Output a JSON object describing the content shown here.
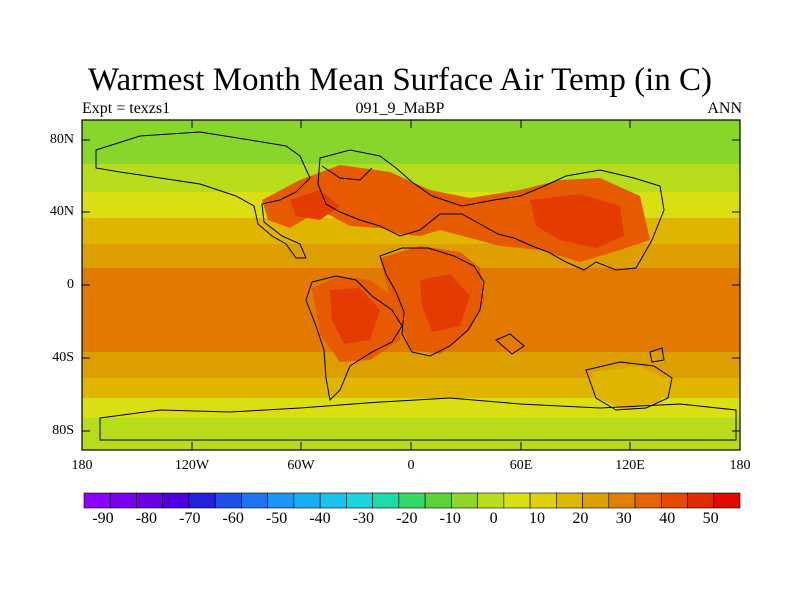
{
  "title": "Warmest Month Mean Surface Air Temp (in C)",
  "subtitle_left": "Expt = texzs1",
  "subtitle_center": "091_9_MaBP",
  "subtitle_right": "ANN",
  "lat_ticks": [
    "80N",
    "40N",
    "0",
    "40S",
    "80S"
  ],
  "lon_ticks": [
    "180",
    "120W",
    "60W",
    "0",
    "60E",
    "120E",
    "180"
  ],
  "colorbar": {
    "labels": [
      "-90",
      "-80",
      "-70",
      "-60",
      "-50",
      "-40",
      "-30",
      "-20",
      "-10",
      "0",
      "10",
      "20",
      "30",
      "40",
      "50"
    ],
    "colors": [
      "#8c00ff",
      "#7a00f0",
      "#6a00e6",
      "#4a00e0",
      "#2222dd",
      "#1f4fe8",
      "#1f73f0",
      "#1a96f5",
      "#18aef5",
      "#18c4ee",
      "#1bd4dc",
      "#1ddcaa",
      "#33d866",
      "#5ad23a",
      "#8fd628",
      "#b9dc1c",
      "#d6e012",
      "#e0cf0a",
      "#dcb800",
      "#dca000",
      "#e08000",
      "#e66400",
      "#e44800",
      "#e02a00",
      "#e00a00"
    ]
  },
  "field_colors": {
    "band_green": "#88d62c",
    "band_yellowgreen": "#b7dc1c",
    "band_yellow": "#d9df10",
    "band_gold": "#dfb500",
    "band_orange": "#dd9e00",
    "band_darkorange": "#e27a00",
    "land_hot": "#e65a00",
    "land_hotter": "#e43c00"
  }
}
